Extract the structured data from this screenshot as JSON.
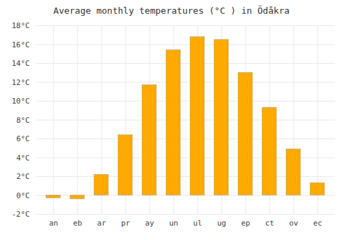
{
  "chart_data": {
    "type": "bar",
    "title": "Average monthly temperatures (°C ) in Ödåkra",
    "categories": [
      "an",
      "eb",
      "ar",
      "pr",
      "ay",
      "un",
      "ul",
      "ug",
      "ep",
      "ct",
      "ov",
      "ec"
    ],
    "values": [
      -0.3,
      -0.4,
      2.2,
      6.4,
      11.7,
      15.4,
      16.8,
      16.5,
      13.0,
      9.3,
      4.9,
      1.3
    ],
    "color": "#FFAA00",
    "ylim": [
      -2,
      18
    ],
    "yticks": [
      {
        "value": -2,
        "label": "-2°C"
      },
      {
        "value": 0,
        "label": "0°C"
      },
      {
        "value": 2,
        "label": "2°C"
      },
      {
        "value": 4,
        "label": "4°C"
      },
      {
        "value": 6,
        "label": "6°C"
      },
      {
        "value": 8,
        "label": "8°C"
      },
      {
        "value": 10,
        "label": "10°C"
      },
      {
        "value": 12,
        "label": "12°C"
      },
      {
        "value": 14,
        "label": "14°C"
      },
      {
        "value": 16,
        "label": "16°C"
      },
      {
        "value": 18,
        "label": "18°C"
      }
    ],
    "grid": true
  }
}
